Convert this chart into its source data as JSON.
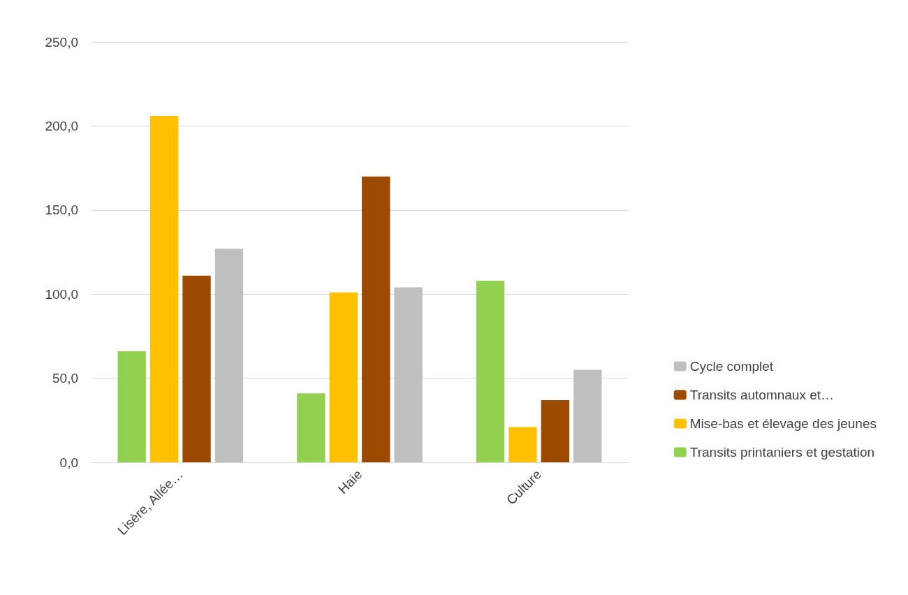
{
  "chart_data": {
    "type": "bar",
    "categories": [
      "Lisère, Allée…",
      "Haie",
      "Culture"
    ],
    "series": [
      {
        "name": "Transits printaniers et gestation",
        "color": "#92d050",
        "values": [
          66,
          41,
          108
        ]
      },
      {
        "name": "Mise-bas et élevage des jeunes",
        "color": "#ffc000",
        "values": [
          206,
          101,
          21
        ]
      },
      {
        "name": "Transits automnaux et…",
        "color": "#9c4a00",
        "values": [
          111,
          170,
          37
        ]
      },
      {
        "name": "Cycle complet",
        "color": "#bfbfbf",
        "values": [
          127,
          104,
          55
        ]
      }
    ],
    "ylim": [
      0,
      250
    ],
    "yticks": [
      {
        "value": 0,
        "label": "0,0"
      },
      {
        "value": 50,
        "label": "50,0"
      },
      {
        "value": 100,
        "label": "100,0"
      },
      {
        "value": 150,
        "label": "150,0"
      },
      {
        "value": 200,
        "label": "200,0"
      },
      {
        "value": 250,
        "label": "250,0"
      }
    ],
    "grid": true,
    "legend": "bottom right"
  }
}
